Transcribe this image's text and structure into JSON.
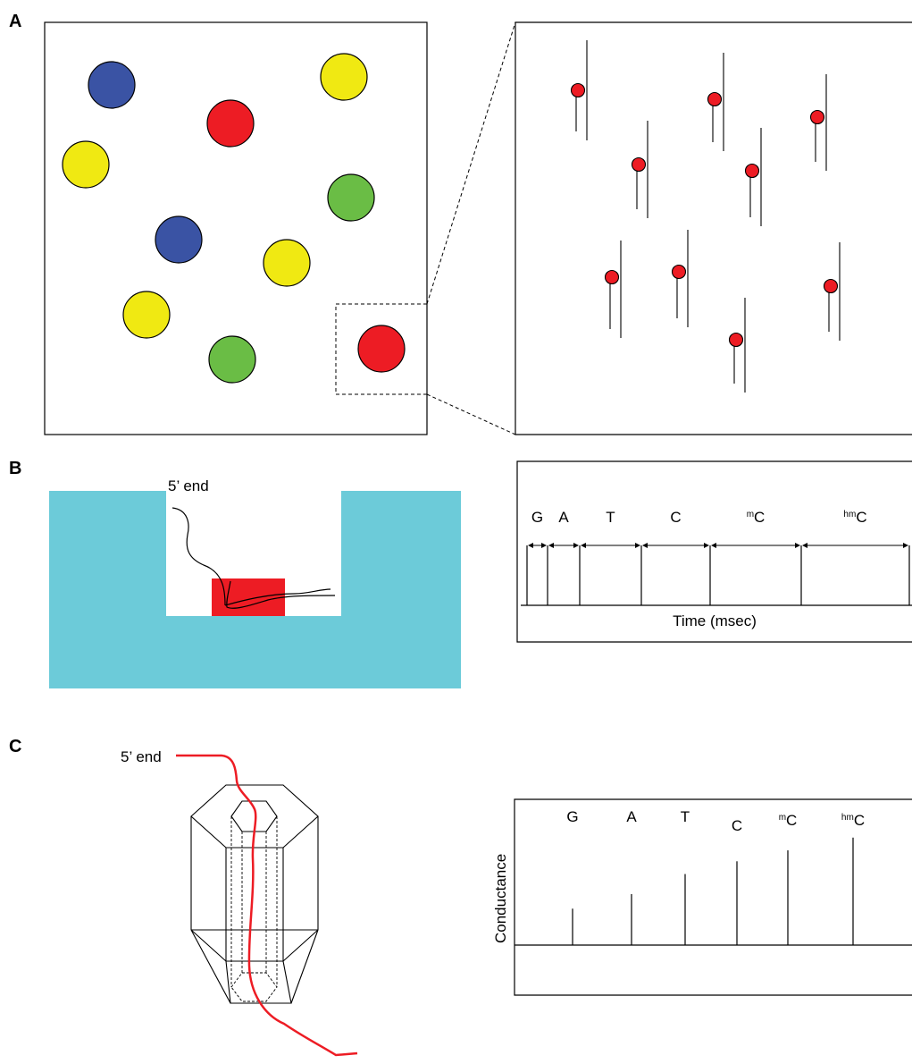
{
  "panels": {
    "a": {
      "letter": "A",
      "circle_colors": [
        "#3a53a4",
        "#ed1c24",
        "#f0e912",
        "#f0e912",
        "#6abd45",
        "#3a53a4",
        "#f0e912",
        "#f0e912",
        "#6abd45",
        "#ed1c24"
      ],
      "molecule_color": "#ed1c24",
      "molecule_count": 10
    },
    "b": {
      "letter": "B",
      "end_label": "5’ end",
      "pore_color": "#6ccbd9",
      "enzyme_color": "#ed1c24",
      "bases": [
        {
          "prefix": "",
          "base": "G"
        },
        {
          "prefix": "",
          "base": "A"
        },
        {
          "prefix": "",
          "base": "T"
        },
        {
          "prefix": "",
          "base": "C"
        },
        {
          "prefix": "m",
          "base": "C"
        },
        {
          "prefix": "hm",
          "base": "C"
        }
      ],
      "xlabel": "Time (msec)"
    },
    "c": {
      "letter": "C",
      "end_label": "5’ end",
      "strand_color": "#ed1c24",
      "ylabel": "Conductance",
      "chart_data": {
        "type": "bar",
        "categories": [
          "G",
          "A",
          "T",
          "C",
          "mC",
          "hmC"
        ],
        "category_prefixes": [
          "",
          "",
          "",
          "",
          "m",
          "hm"
        ],
        "category_bases": [
          "G",
          "A",
          "T",
          "C",
          "C",
          "C"
        ],
        "values": [
          1,
          1.4,
          1.95,
          2.3,
          2.6,
          2.95
        ],
        "ylim": [
          0,
          4
        ],
        "ylabel": "Conductance",
        "xlabel": "",
        "grid": false
      }
    }
  }
}
